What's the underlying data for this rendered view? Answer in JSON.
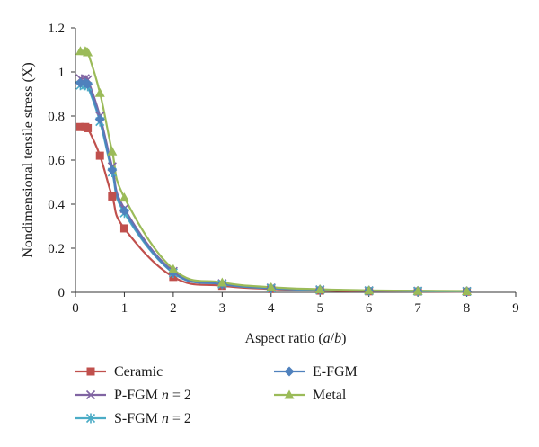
{
  "chart_data": {
    "type": "line",
    "xlabel_parts": [
      {
        "text": "Aspect ratio (",
        "italic": false
      },
      {
        "text": "a",
        "italic": true
      },
      {
        "text": "/",
        "italic": false
      },
      {
        "text": "b",
        "italic": true
      },
      {
        "text": ")",
        "italic": false
      }
    ],
    "ylabel": "Nondimensional tensile stress (X)",
    "xlim": [
      0,
      9
    ],
    "ylim": [
      0,
      1.2
    ],
    "x_ticks": [
      "0",
      "1",
      "2",
      "3",
      "4",
      "5",
      "6",
      "7",
      "8",
      "9"
    ],
    "y_ticks": [
      "0",
      "0.2",
      "0.4",
      "0.6",
      "0.8",
      "1",
      "1.2"
    ],
    "grid": false,
    "legend_position": "bottom",
    "x": [
      0.1,
      0.2,
      0.25,
      0.5,
      0.75,
      1,
      2,
      3,
      4,
      5,
      6,
      7,
      8
    ],
    "series": [
      {
        "label_parts": [
          {
            "text": "Ceramic",
            "italic": false
          }
        ],
        "color": "#c0504d",
        "marker": "square",
        "values": [
          0.75,
          0.75,
          0.745,
          0.62,
          0.435,
          0.29,
          0.07,
          0.03,
          0.015,
          0.008,
          0.005,
          0.004,
          0.003
        ]
      },
      {
        "label_parts": [
          {
            "text": "P-FGM ",
            "italic": false
          },
          {
            "text": "n",
            "italic": true
          },
          {
            "text": " = 2",
            "italic": false
          }
        ],
        "color": "#8064a2",
        "marker": "x",
        "values": [
          0.97,
          0.97,
          0.965,
          0.8,
          0.57,
          0.38,
          0.095,
          0.04,
          0.02,
          0.012,
          0.008,
          0.006,
          0.005
        ]
      },
      {
        "label_parts": [
          {
            "text": "S-FGM ",
            "italic": false
          },
          {
            "text": "n",
            "italic": true
          },
          {
            "text": " = 2",
            "italic": false
          }
        ],
        "color": "#4bacc6",
        "marker": "star",
        "values": [
          0.94,
          0.94,
          0.935,
          0.775,
          0.545,
          0.36,
          0.088,
          0.037,
          0.018,
          0.011,
          0.007,
          0.005,
          0.004
        ]
      },
      {
        "label_parts": [
          {
            "text": "E-FGM",
            "italic": false
          }
        ],
        "color": "#4f81bd",
        "marker": "diamond",
        "values": [
          0.95,
          0.95,
          0.945,
          0.785,
          0.555,
          0.37,
          0.09,
          0.038,
          0.019,
          0.012,
          0.008,
          0.006,
          0.005
        ]
      },
      {
        "label_parts": [
          {
            "text": "Metal",
            "italic": false
          }
        ],
        "color": "#9bbb59",
        "marker": "triangle",
        "values": [
          1.095,
          1.095,
          1.09,
          0.905,
          0.64,
          0.43,
          0.105,
          0.045,
          0.023,
          0.014,
          0.009,
          0.007,
          0.006
        ]
      }
    ]
  }
}
